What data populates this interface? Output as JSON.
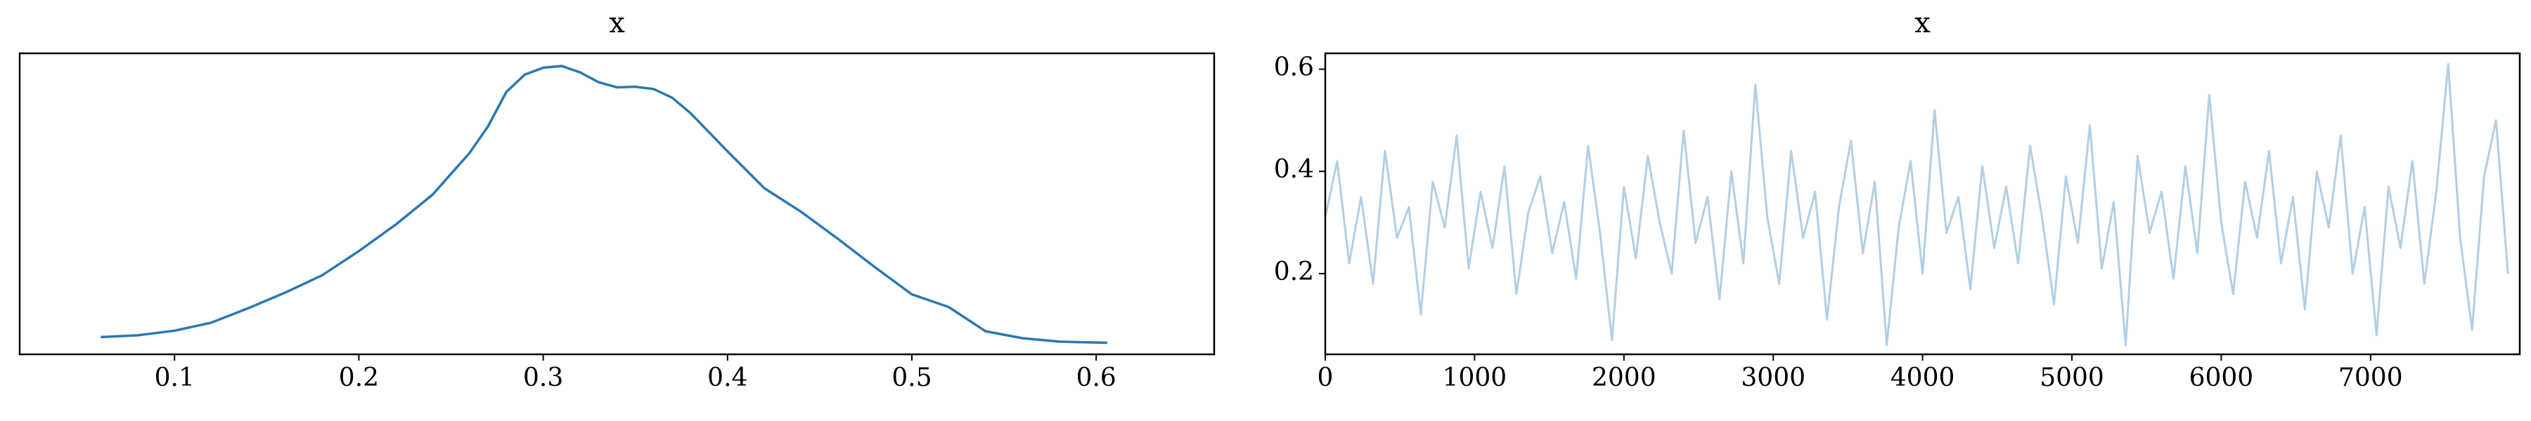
{
  "chart_data": [
    {
      "type": "line",
      "title": "x",
      "color": "#2a78b3",
      "x": [
        0.06,
        0.08,
        0.1,
        0.12,
        0.14,
        0.16,
        0.18,
        0.2,
        0.22,
        0.24,
        0.26,
        0.27,
        0.28,
        0.29,
        0.3,
        0.31,
        0.32,
        0.33,
        0.34,
        0.35,
        0.36,
        0.37,
        0.38,
        0.4,
        0.42,
        0.44,
        0.46,
        0.48,
        0.5,
        0.52,
        0.54,
        0.56,
        0.58,
        0.606
      ],
      "values": [
        0.3,
        0.33,
        0.41,
        0.55,
        0.8,
        1.07,
        1.37,
        1.79,
        2.25,
        2.77,
        3.49,
        3.95,
        4.55,
        4.85,
        4.97,
        5.0,
        4.89,
        4.72,
        4.63,
        4.64,
        4.6,
        4.45,
        4.18,
        3.52,
        2.88,
        2.47,
        2.0,
        1.51,
        1.04,
        0.82,
        0.4,
        0.28,
        0.22,
        0.2
      ],
      "xlim": [
        0.016,
        0.664
      ],
      "ylim": [
        0,
        5.22
      ],
      "xticks": [
        0.1,
        0.2,
        0.3,
        0.4,
        0.5,
        0.6
      ]
    },
    {
      "type": "line",
      "title": "x",
      "color": "#b1cfe5",
      "x": [
        0,
        80,
        160,
        240,
        320,
        400,
        480,
        560,
        640,
        720,
        800,
        880,
        960,
        1040,
        1120,
        1200,
        1280,
        1360,
        1440,
        1520,
        1600,
        1680,
        1760,
        1840,
        1920,
        2000,
        2080,
        2160,
        2240,
        2320,
        2400,
        2480,
        2560,
        2640,
        2720,
        2800,
        2880,
        2960,
        3040,
        3120,
        3200,
        3280,
        3360,
        3440,
        3520,
        3600,
        3680,
        3760,
        3840,
        3920,
        4000,
        4080,
        4160,
        4240,
        4320,
        4400,
        4480,
        4560,
        4640,
        4720,
        4800,
        4880,
        4960,
        5040,
        5120,
        5200,
        5280,
        5360,
        5440,
        5520,
        5600,
        5680,
        5760,
        5840,
        5920,
        6000,
        6080,
        6160,
        6240,
        6320,
        6400,
        6480,
        6560,
        6640,
        6720,
        6800,
        6880,
        6960,
        7040,
        7120,
        7200,
        7280,
        7360,
        7440,
        7520,
        7600,
        7680,
        7760,
        7840,
        7920
      ],
      "values": [
        0.31,
        0.42,
        0.22,
        0.35,
        0.18,
        0.44,
        0.27,
        0.33,
        0.12,
        0.38,
        0.29,
        0.47,
        0.21,
        0.36,
        0.25,
        0.41,
        0.16,
        0.32,
        0.39,
        0.24,
        0.34,
        0.19,
        0.45,
        0.28,
        0.07,
        0.37,
        0.23,
        0.43,
        0.3,
        0.2,
        0.48,
        0.26,
        0.35,
        0.15,
        0.4,
        0.22,
        0.57,
        0.31,
        0.18,
        0.44,
        0.27,
        0.36,
        0.11,
        0.33,
        0.46,
        0.24,
        0.38,
        0.06,
        0.29,
        0.42,
        0.2,
        0.52,
        0.28,
        0.35,
        0.17,
        0.41,
        0.25,
        0.37,
        0.22,
        0.45,
        0.31,
        0.14,
        0.39,
        0.26,
        0.49,
        0.21,
        0.34,
        0.06,
        0.43,
        0.28,
        0.36,
        0.19,
        0.41,
        0.24,
        0.55,
        0.3,
        0.16,
        0.38,
        0.27,
        0.44,
        0.22,
        0.35,
        0.13,
        0.4,
        0.29,
        0.47,
        0.2,
        0.33,
        0.08,
        0.37,
        0.25,
        0.42,
        0.18,
        0.36,
        0.61,
        0.27,
        0.09,
        0.39,
        0.5,
        0.2
      ],
      "xlim": [
        0,
        7999
      ],
      "ylim": [
        0.042,
        0.631
      ],
      "xticks": [
        0,
        1000,
        2000,
        3000,
        4000,
        5000,
        6000,
        7000
      ],
      "yticks": [
        0.2,
        0.4,
        0.6
      ]
    }
  ]
}
